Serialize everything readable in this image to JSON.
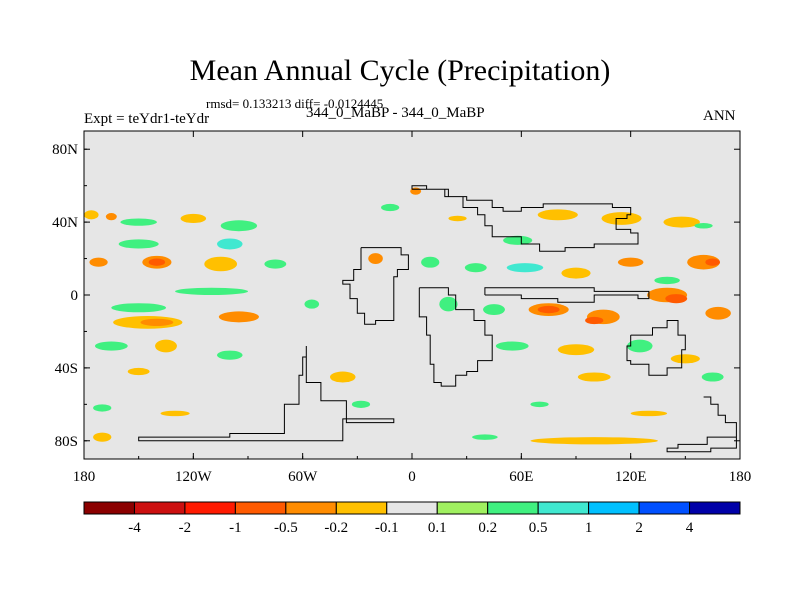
{
  "title": "Mean Annual Cycle (Precipitation)",
  "stats_line": "rmsd= 0.133213 diff= -0.0124445",
  "experiment_label": "Expt = teYdr1-teYdr",
  "subtitle": "344_0_MaBP - 344_0_MaBP",
  "season": "ANN",
  "chart_data": {
    "type": "heatmap",
    "title": "Mean Annual Cycle (Precipitation)",
    "field": "Precipitation difference (teYdr1 - teYdr), annual mean",
    "x_range": [
      -180,
      180
    ],
    "y_range": [
      -90,
      90
    ],
    "x_ticks": [
      {
        "value": -180,
        "label": "180"
      },
      {
        "value": -120,
        "label": "120W"
      },
      {
        "value": -60,
        "label": "60W"
      },
      {
        "value": 0,
        "label": "0"
      },
      {
        "value": 60,
        "label": "60E"
      },
      {
        "value": 120,
        "label": "120E"
      },
      {
        "value": 180,
        "label": "180"
      }
    ],
    "y_ticks": [
      {
        "value": 80,
        "label": "80N"
      },
      {
        "value": 40,
        "label": "40N"
      },
      {
        "value": 0,
        "label": "0"
      },
      {
        "value": -40,
        "label": "40S"
      },
      {
        "value": -80,
        "label": "80S"
      }
    ],
    "colorbar": {
      "colors": [
        "#8b0000",
        "#cc1010",
        "#ff1a00",
        "#ff5a00",
        "#ff8c00",
        "#ffc000",
        "#e6e6e6",
        "#a0f060",
        "#40f080",
        "#40e8d0",
        "#00c0ff",
        "#0050ff",
        "#0000a8"
      ],
      "labels": [
        "-4",
        "-2",
        "-1",
        "-0.5",
        "-0.2",
        "-0.1",
        "0.1",
        "0.2",
        "0.5",
        "1",
        "2",
        "4"
      ]
    },
    "anomaly_patches": [
      {
        "lon": -176,
        "lat": 44,
        "w": 8,
        "h": 5,
        "level": "-0.1"
      },
      {
        "lon": -165,
        "lat": 43,
        "w": 6,
        "h": 4,
        "level": "-0.2"
      },
      {
        "lon": -150,
        "lat": 40,
        "w": 20,
        "h": 4,
        "level": "0.2"
      },
      {
        "lon": -120,
        "lat": 42,
        "w": 14,
        "h": 5,
        "level": "-0.1"
      },
      {
        "lon": -95,
        "lat": 38,
        "w": 20,
        "h": 6,
        "level": "0.2"
      },
      {
        "lon": -150,
        "lat": 28,
        "w": 22,
        "h": 5,
        "level": "0.2"
      },
      {
        "lon": -100,
        "lat": 28,
        "w": 14,
        "h": 6,
        "level": "0.5"
      },
      {
        "lon": -172,
        "lat": 18,
        "w": 10,
        "h": 5,
        "level": "-0.2"
      },
      {
        "lon": -140,
        "lat": 18,
        "w": 16,
        "h": 7,
        "level": "-0.2"
      },
      {
        "lon": -140,
        "lat": 18,
        "w": 9,
        "h": 4,
        "level": "-0.5"
      },
      {
        "lon": -105,
        "lat": 17,
        "w": 18,
        "h": 8,
        "level": "-0.1"
      },
      {
        "lon": -75,
        "lat": 17,
        "w": 12,
        "h": 5,
        "level": "0.2"
      },
      {
        "lon": -110,
        "lat": 2,
        "w": 40,
        "h": 4,
        "level": "0.2"
      },
      {
        "lon": -150,
        "lat": -7,
        "w": 30,
        "h": 5,
        "level": "0.2"
      },
      {
        "lon": -145,
        "lat": -15,
        "w": 38,
        "h": 7,
        "level": "-0.1"
      },
      {
        "lon": -140,
        "lat": -15,
        "w": 18,
        "h": 4,
        "level": "-0.2"
      },
      {
        "lon": -95,
        "lat": -12,
        "w": 22,
        "h": 6,
        "level": "-0.2"
      },
      {
        "lon": -55,
        "lat": -5,
        "w": 8,
        "h": 5,
        "level": "0.2"
      },
      {
        "lon": -165,
        "lat": -28,
        "w": 18,
        "h": 5,
        "level": "0.2"
      },
      {
        "lon": -135,
        "lat": -28,
        "w": 12,
        "h": 7,
        "level": "-0.1"
      },
      {
        "lon": -150,
        "lat": -42,
        "w": 12,
        "h": 4,
        "level": "-0.1"
      },
      {
        "lon": -100,
        "lat": -33,
        "w": 14,
        "h": 5,
        "level": "0.2"
      },
      {
        "lon": -170,
        "lat": -62,
        "w": 10,
        "h": 4,
        "level": "0.2"
      },
      {
        "lon": -130,
        "lat": -65,
        "w": 16,
        "h": 3,
        "level": "-0.1"
      },
      {
        "lon": -170,
        "lat": -78,
        "w": 10,
        "h": 5,
        "level": "-0.1"
      },
      {
        "lon": -38,
        "lat": -45,
        "w": 14,
        "h": 6,
        "level": "-0.1"
      },
      {
        "lon": -28,
        "lat": -60,
        "w": 10,
        "h": 4,
        "level": "0.2"
      },
      {
        "lon": -12,
        "lat": 48,
        "w": 10,
        "h": 4,
        "level": "0.2"
      },
      {
        "lon": -20,
        "lat": 20,
        "w": 8,
        "h": 6,
        "level": "-0.2"
      },
      {
        "lon": 2,
        "lat": 57,
        "w": 6,
        "h": 4,
        "level": "-0.2"
      },
      {
        "lon": 25,
        "lat": 42,
        "w": 10,
        "h": 3,
        "level": "-0.1"
      },
      {
        "lon": 58,
        "lat": 30,
        "w": 16,
        "h": 5,
        "level": "0.2"
      },
      {
        "lon": 80,
        "lat": 44,
        "w": 22,
        "h": 6,
        "level": "-0.1"
      },
      {
        "lon": 115,
        "lat": 42,
        "w": 22,
        "h": 7,
        "level": "-0.1"
      },
      {
        "lon": 148,
        "lat": 40,
        "w": 20,
        "h": 6,
        "level": "-0.1"
      },
      {
        "lon": 160,
        "lat": 38,
        "w": 10,
        "h": 3,
        "level": "0.2"
      },
      {
        "lon": 10,
        "lat": 18,
        "w": 10,
        "h": 6,
        "level": "0.2"
      },
      {
        "lon": 35,
        "lat": 15,
        "w": 12,
        "h": 5,
        "level": "0.2"
      },
      {
        "lon": 62,
        "lat": 15,
        "w": 20,
        "h": 5,
        "level": "0.5"
      },
      {
        "lon": 90,
        "lat": 12,
        "w": 16,
        "h": 6,
        "level": "-0.1"
      },
      {
        "lon": 120,
        "lat": 18,
        "w": 14,
        "h": 5,
        "level": "-0.2"
      },
      {
        "lon": 160,
        "lat": 18,
        "w": 18,
        "h": 8,
        "level": "-0.2"
      },
      {
        "lon": 165,
        "lat": 18,
        "w": 8,
        "h": 4,
        "level": "-0.5"
      },
      {
        "lon": 140,
        "lat": 8,
        "w": 14,
        "h": 4,
        "level": "0.2"
      },
      {
        "lon": 20,
        "lat": -5,
        "w": 10,
        "h": 8,
        "level": "0.2"
      },
      {
        "lon": 45,
        "lat": -8,
        "w": 12,
        "h": 6,
        "level": "0.2"
      },
      {
        "lon": 75,
        "lat": -8,
        "w": 22,
        "h": 7,
        "level": "-0.2"
      },
      {
        "lon": 75,
        "lat": -8,
        "w": 12,
        "h": 4,
        "level": "-0.5"
      },
      {
        "lon": 105,
        "lat": -12,
        "w": 18,
        "h": 8,
        "level": "-0.2"
      },
      {
        "lon": 100,
        "lat": -14,
        "w": 10,
        "h": 4,
        "level": "-0.5"
      },
      {
        "lon": 140,
        "lat": 0,
        "w": 22,
        "h": 8,
        "level": "-0.2"
      },
      {
        "lon": 145,
        "lat": -2,
        "w": 12,
        "h": 5,
        "level": "-0.5"
      },
      {
        "lon": 168,
        "lat": -10,
        "w": 14,
        "h": 7,
        "level": "-0.2"
      },
      {
        "lon": 55,
        "lat": -28,
        "w": 18,
        "h": 5,
        "level": "0.2"
      },
      {
        "lon": 90,
        "lat": -30,
        "w": 20,
        "h": 6,
        "level": "-0.1"
      },
      {
        "lon": 125,
        "lat": -28,
        "w": 14,
        "h": 7,
        "level": "0.2"
      },
      {
        "lon": 150,
        "lat": -35,
        "w": 16,
        "h": 5,
        "level": "-0.1"
      },
      {
        "lon": 100,
        "lat": -45,
        "w": 18,
        "h": 5,
        "level": "-0.1"
      },
      {
        "lon": 165,
        "lat": -45,
        "w": 12,
        "h": 5,
        "level": "0.2"
      },
      {
        "lon": 70,
        "lat": -60,
        "w": 10,
        "h": 3,
        "level": "0.2"
      },
      {
        "lon": 130,
        "lat": -65,
        "w": 20,
        "h": 3,
        "level": "-0.1"
      },
      {
        "lon": 100,
        "lat": -80,
        "w": 70,
        "h": 4,
        "level": "-0.1"
      },
      {
        "lon": 40,
        "lat": -78,
        "w": 14,
        "h": 3,
        "level": "0.2"
      }
    ],
    "landmasses": [
      [
        [
          -58,
          -28
        ],
        [
          -58,
          -48
        ],
        [
          -50,
          -48
        ],
        [
          -50,
          -58
        ],
        [
          -36,
          -58
        ],
        [
          -36,
          -70
        ],
        [
          -10,
          -70
        ],
        [
          -10,
          -68
        ],
        [
          -36,
          -68
        ],
        [
          -38,
          -80
        ],
        [
          -100,
          -80
        ],
        [
          -150,
          -80
        ],
        [
          -150,
          -78
        ],
        [
          -100,
          -76
        ],
        [
          -70,
          -60
        ],
        [
          -62,
          -44
        ],
        [
          -60,
          -34
        ],
        [
          -58,
          -28
        ]
      ],
      [
        [
          -28,
          26
        ],
        [
          -12,
          26
        ],
        [
          -6,
          22
        ],
        [
          -2,
          14
        ],
        [
          -8,
          10
        ],
        [
          -10,
          -14
        ],
        [
          -20,
          -16
        ],
        [
          -26,
          -10
        ],
        [
          -30,
          -2
        ],
        [
          -34,
          6
        ],
        [
          -38,
          8
        ],
        [
          -32,
          14
        ],
        [
          -28,
          26
        ]
      ],
      [
        [
          0,
          58
        ],
        [
          8,
          58
        ],
        [
          18,
          54
        ],
        [
          28,
          48
        ],
        [
          36,
          44
        ],
        [
          40,
          38
        ],
        [
          44,
          32
        ],
        [
          60,
          28
        ],
        [
          66,
          28
        ],
        [
          70,
          24
        ],
        [
          84,
          26
        ],
        [
          100,
          28
        ],
        [
          120,
          28
        ],
        [
          124,
          30
        ],
        [
          124,
          34
        ],
        [
          120,
          36
        ],
        [
          112,
          42
        ],
        [
          118,
          44
        ],
        [
          120,
          48
        ],
        [
          110,
          50
        ],
        [
          90,
          50
        ],
        [
          72,
          48
        ],
        [
          60,
          46
        ],
        [
          50,
          48
        ],
        [
          44,
          52
        ],
        [
          30,
          54
        ],
        [
          20,
          58
        ],
        [
          8,
          60
        ],
        [
          0,
          58
        ]
      ],
      [
        [
          4,
          4
        ],
        [
          14,
          4
        ],
        [
          20,
          0
        ],
        [
          24,
          -8
        ],
        [
          34,
          -14
        ],
        [
          40,
          -22
        ],
        [
          44,
          -36
        ],
        [
          36,
          -42
        ],
        [
          30,
          -44
        ],
        [
          24,
          -50
        ],
        [
          16,
          -48
        ],
        [
          12,
          -38
        ],
        [
          10,
          -22
        ],
        [
          8,
          -12
        ],
        [
          4,
          -4
        ],
        [
          4,
          4
        ]
      ],
      [
        [
          40,
          0
        ],
        [
          60,
          -2
        ],
        [
          80,
          -4
        ],
        [
          94,
          -4
        ],
        [
          100,
          0
        ],
        [
          114,
          0
        ],
        [
          124,
          -2
        ],
        [
          130,
          -2
        ],
        [
          130,
          2
        ],
        [
          100,
          4
        ],
        [
          74,
          4
        ],
        [
          60,
          4
        ],
        [
          40,
          4
        ],
        [
          40,
          0
        ]
      ],
      [
        [
          120,
          -22
        ],
        [
          132,
          -18
        ],
        [
          140,
          -14
        ],
        [
          146,
          -22
        ],
        [
          150,
          -30
        ],
        [
          148,
          -40
        ],
        [
          140,
          -44
        ],
        [
          130,
          -38
        ],
        [
          120,
          -36
        ],
        [
          118,
          -28
        ],
        [
          120,
          -22
        ]
      ],
      [
        [
          160,
          -56
        ],
        [
          164,
          -60
        ],
        [
          168,
          -66
        ],
        [
          172,
          -70
        ],
        [
          178,
          -74
        ],
        [
          178,
          -78
        ],
        [
          168,
          -78
        ],
        [
          162,
          -82
        ],
        [
          148,
          -82
        ],
        [
          146,
          -84
        ],
        [
          140,
          -86
        ],
        [
          150,
          -86
        ],
        [
          164,
          -84
        ],
        [
          178,
          -84
        ],
        [
          178,
          -78
        ]
      ]
    ]
  }
}
